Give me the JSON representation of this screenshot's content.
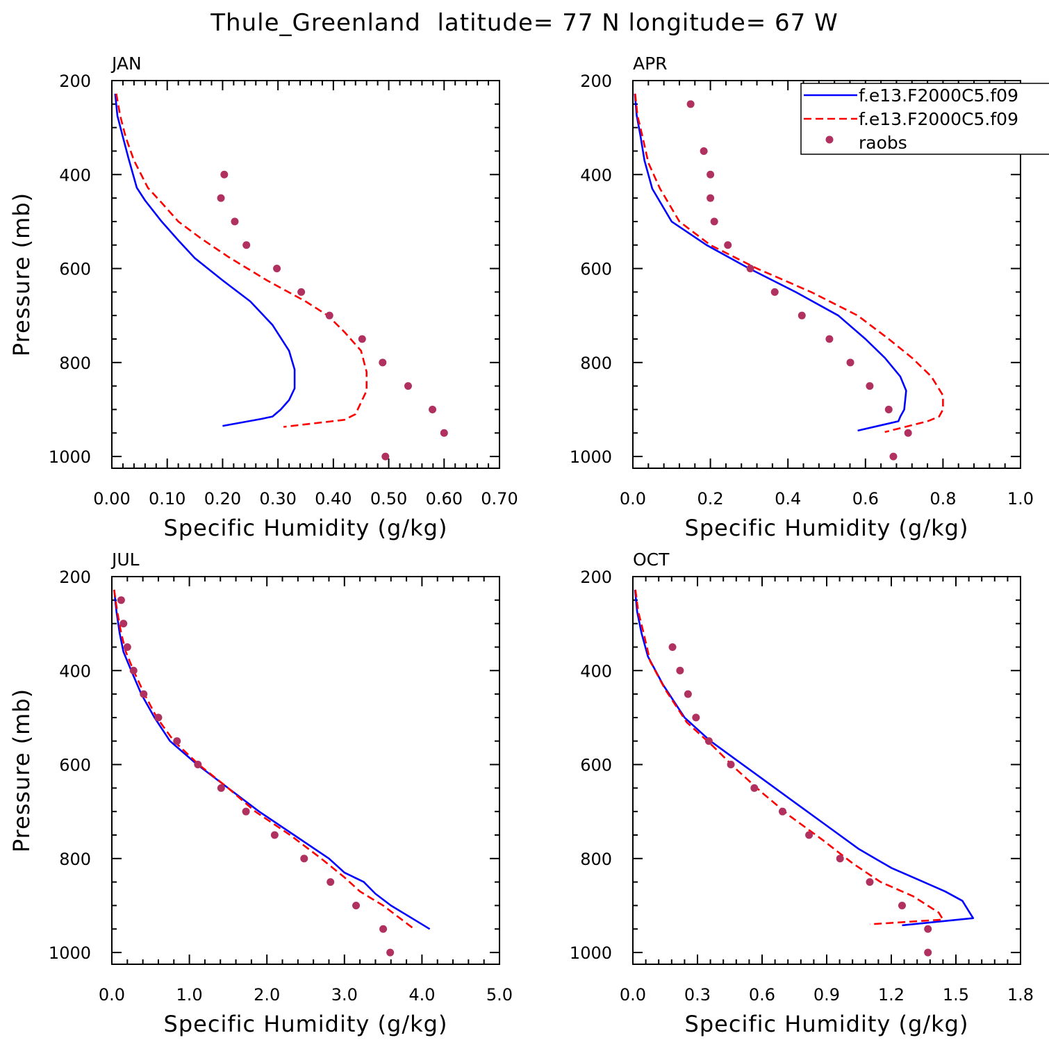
{
  "chart_data": {
    "figure_title": "Thule_Greenland  latitude= 77 N longitude= 67 W",
    "legend": {
      "placement": "top-right of APR panel (clipped at image edge)",
      "entries": [
        {
          "label": "f.e13.F2000C5.f09",
          "color": "#0000ff",
          "style": "solid"
        },
        {
          "label": "f.e13.F2000C5.f09",
          "color": "#ff0000",
          "style": "dashed"
        },
        {
          "label": "raobs",
          "color": "#b03060",
          "style": "marker"
        }
      ]
    },
    "panels": [
      {
        "type": "line",
        "title": "JAN",
        "xlabel": "Specific Humidity (g/kg)",
        "ylabel": "Pressure (mb)",
        "xlim": [
          0,
          0.7
        ],
        "xticks": [
          0,
          0.1,
          0.2,
          0.3,
          0.4,
          0.5,
          0.6,
          0.7
        ],
        "xtick_labels": [
          "0.00",
          "0.10",
          "0.20",
          "0.30",
          "0.40",
          "0.50",
          "0.60",
          "0.70"
        ],
        "ylim": [
          200,
          1025
        ],
        "yticks": [
          200,
          400,
          600,
          800,
          1000
        ],
        "ytick_labels": [
          "200",
          "400",
          "600",
          "800",
          "1000"
        ],
        "series": [
          {
            "name": "f.e13.F2000C5.f09 (solid)",
            "color": "#0000ff",
            "dash": false,
            "x": [
              0.006,
              0.01,
              0.02,
              0.03,
              0.045,
              0.06,
              0.09,
              0.12,
              0.15,
              0.2,
              0.25,
              0.29,
              0.32,
              0.33,
              0.33,
              0.32,
              0.305,
              0.29,
              0.27,
              0.2
            ],
            "y": [
              228,
              275,
              320,
              365,
              428,
              455,
              500,
              540,
              578,
              625,
              670,
              720,
              775,
              815,
              855,
              880,
              900,
              915,
              920,
              935
            ]
          },
          {
            "name": "f.e13.F2000C5.f09 (dashed)",
            "color": "#ff0000",
            "dash": true,
            "x": [
              0.008,
              0.015,
              0.025,
              0.04,
              0.065,
              0.09,
              0.12,
              0.16,
              0.21,
              0.28,
              0.35,
              0.39,
              0.42,
              0.45,
              0.46,
              0.46,
              0.45,
              0.44,
              0.42,
              0.31
            ],
            "y": [
              228,
              275,
              320,
              370,
              428,
              460,
              500,
              535,
              575,
              625,
              670,
              700,
              735,
              775,
              820,
              860,
              885,
              910,
              922,
              937
            ]
          }
        ],
        "points": {
          "name": "raobs",
          "color": "#b03060",
          "x": [
            0.203,
            0.197,
            0.222,
            0.243,
            0.298,
            0.342,
            0.393,
            0.452,
            0.489,
            0.535,
            0.579,
            0.6,
            0.494
          ],
          "y": [
            400,
            450,
            500,
            550,
            600,
            650,
            700,
            750,
            800,
            850,
            900,
            950,
            1000
          ]
        }
      },
      {
        "type": "line",
        "title": "APR",
        "xlabel": "Specific Humidity (g/kg)",
        "ylabel": "",
        "xlim": [
          0,
          1.0
        ],
        "xticks": [
          0,
          0.2,
          0.4,
          0.6,
          0.8,
          1.0
        ],
        "xtick_labels": [
          "0.0",
          "0.2",
          "0.4",
          "0.6",
          "0.8",
          "1.0"
        ],
        "ylim": [
          200,
          1025
        ],
        "yticks": [
          200,
          400,
          600,
          800,
          1000
        ],
        "ytick_labels": [
          "200",
          "400",
          "600",
          "800",
          "1000"
        ],
        "series": [
          {
            "name": "f.e13.F2000C5.f09 (solid)",
            "color": "#0000ff",
            "dash": false,
            "x": [
              0.005,
              0.01,
              0.02,
              0.03,
              0.05,
              0.1,
              0.19,
              0.3,
              0.42,
              0.53,
              0.6,
              0.65,
              0.69,
              0.705,
              0.7,
              0.69,
              0.685,
              0.58
            ],
            "y": [
              228,
              275,
              320,
              370,
              430,
              500,
              550,
              600,
              650,
              700,
              750,
              790,
              830,
              860,
              900,
              915,
              925,
              945
            ]
          },
          {
            "name": "f.e13.F2000C5.f09 (dashed)",
            "color": "#ff0000",
            "dash": true,
            "x": [
              0.006,
              0.012,
              0.025,
              0.04,
              0.07,
              0.12,
              0.2,
              0.32,
              0.46,
              0.58,
              0.66,
              0.72,
              0.77,
              0.8,
              0.8,
              0.79,
              0.76,
              0.65
            ],
            "y": [
              228,
              275,
              320,
              375,
              430,
              500,
              550,
              600,
              650,
              700,
              750,
              790,
              830,
              870,
              900,
              915,
              925,
              948
            ]
          }
        ],
        "points": {
          "name": "raobs",
          "color": "#b03060",
          "x": [
            0.149,
            0.183,
            0.2,
            0.2,
            0.21,
            0.245,
            0.303,
            0.366,
            0.436,
            0.507,
            0.561,
            0.611,
            0.66,
            0.71,
            0.672
          ],
          "y": [
            250,
            350,
            400,
            450,
            500,
            550,
            600,
            650,
            700,
            750,
            800,
            850,
            900,
            950,
            1000
          ]
        }
      },
      {
        "type": "line",
        "title": "JUL",
        "xlabel": "Specific Humidity (g/kg)",
        "ylabel": "Pressure (mb)",
        "xlim": [
          0,
          5.0
        ],
        "xticks": [
          0,
          1,
          2,
          3,
          4,
          5
        ],
        "xtick_labels": [
          "0.0",
          "1.0",
          "2.0",
          "3.0",
          "4.0",
          "5.0"
        ],
        "ylim": [
          200,
          1025
        ],
        "yticks": [
          200,
          400,
          600,
          800,
          1000
        ],
        "ytick_labels": [
          "200",
          "400",
          "600",
          "800",
          "1000"
        ],
        "series": [
          {
            "name": "f.e13.F2000C5.f09 (solid)",
            "color": "#0000ff",
            "dash": false,
            "x": [
              0.03,
              0.06,
              0.1,
              0.15,
              0.25,
              0.38,
              0.55,
              0.75,
              1.1,
              1.5,
              1.9,
              2.35,
              2.8,
              3.0,
              3.25,
              3.4,
              3.6,
              3.9,
              4.1
            ],
            "y": [
              228,
              275,
              320,
              360,
              400,
              450,
              500,
              550,
              600,
              650,
              700,
              750,
              800,
              830,
              850,
              875,
              900,
              930,
              950
            ]
          },
          {
            "name": "f.e13.F2000C5.f09 (dashed)",
            "color": "#ff0000",
            "dash": true,
            "x": [
              0.03,
              0.07,
              0.12,
              0.18,
              0.28,
              0.42,
              0.58,
              0.8,
              1.12,
              1.5,
              1.85,
              2.3,
              2.7,
              3.0,
              3.2,
              3.5,
              3.7,
              3.9
            ],
            "y": [
              228,
              275,
              320,
              360,
              400,
              450,
              500,
              550,
              600,
              650,
              700,
              750,
              800,
              840,
              870,
              900,
              925,
              950
            ]
          }
        ],
        "points": {
          "name": "raobs",
          "color": "#b03060",
          "x": [
            0.12,
            0.15,
            0.2,
            0.28,
            0.41,
            0.6,
            0.84,
            1.11,
            1.41,
            1.73,
            2.1,
            2.48,
            2.82,
            3.15,
            3.5,
            3.59
          ],
          "y": [
            250,
            300,
            350,
            400,
            450,
            500,
            550,
            600,
            650,
            700,
            750,
            800,
            850,
            900,
            950,
            1000
          ]
        }
      },
      {
        "type": "line",
        "title": "OCT",
        "xlabel": "Specific Humidity (g/kg)",
        "ylabel": "",
        "xlim": [
          0,
          1.8
        ],
        "xticks": [
          0,
          0.3,
          0.6,
          0.9,
          1.2,
          1.5,
          1.8
        ],
        "xtick_labels": [
          "0.0",
          "0.3",
          "0.6",
          "0.9",
          "1.2",
          "1.5",
          "1.8"
        ],
        "ylim": [
          200,
          1025
        ],
        "yticks": [
          200,
          400,
          600,
          800,
          1000
        ],
        "ytick_labels": [
          "200",
          "400",
          "600",
          "800",
          "1000"
        ],
        "series": [
          {
            "name": "f.e13.F2000C5.f09 (solid)",
            "color": "#0000ff",
            "dash": false,
            "x": [
              0.01,
              0.02,
              0.04,
              0.07,
              0.14,
              0.24,
              0.36,
              0.48,
              0.6,
              0.75,
              0.9,
              1.05,
              1.2,
              1.35,
              1.45,
              1.53,
              1.58,
              1.25
            ],
            "y": [
              228,
              275,
              320,
              370,
              430,
              500,
              550,
              590,
              630,
              680,
              730,
              780,
              820,
              850,
              870,
              890,
              927,
              942
            ]
          },
          {
            "name": "f.e13.F2000C5.f09 (dashed)",
            "color": "#ff0000",
            "dash": true,
            "x": [
              0.012,
              0.025,
              0.05,
              0.08,
              0.15,
              0.25,
              0.37,
              0.48,
              0.6,
              0.73,
              0.88,
              1.02,
              1.15,
              1.3,
              1.42,
              1.44,
              1.1
            ],
            "y": [
              228,
              275,
              320,
              380,
              440,
              510,
              560,
              610,
              660,
              710,
              760,
              810,
              850,
              880,
              915,
              930,
              940
            ]
          }
        ],
        "points": {
          "name": "raobs",
          "color": "#b03060",
          "x": [
            0.184,
            0.219,
            0.256,
            0.293,
            0.353,
            0.455,
            0.564,
            0.695,
            0.818,
            0.962,
            1.1,
            1.25,
            1.37,
            1.37
          ],
          "y": [
            350,
            400,
            450,
            500,
            550,
            600,
            650,
            700,
            750,
            800,
            850,
            900,
            950,
            1000
          ]
        }
      }
    ]
  }
}
